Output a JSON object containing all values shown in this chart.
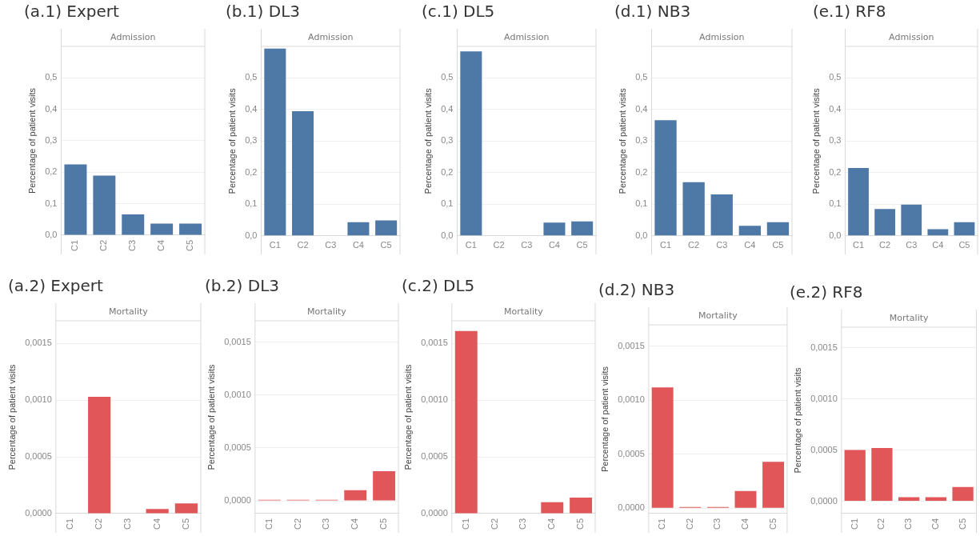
{
  "chart_data": [
    {
      "type": "bar",
      "title": "(a.1) Expert",
      "subtitle": "Admission",
      "ylabel": "Percentage of patient visits",
      "categories": [
        "C1",
        "C2",
        "C3",
        "C4",
        "C5"
      ],
      "color": "#4e79a7",
      "grid": "y",
      "values": [
        0.225,
        0.189,
        0.066,
        0.037,
        0.037
      ],
      "ylim": [
        0,
        0.6
      ],
      "yticks": [
        {
          "value": 0,
          "label": "0,0"
        },
        {
          "value": 0.1,
          "label": "0,1"
        },
        {
          "value": 0.2,
          "label": "0,2"
        },
        {
          "value": 0.3,
          "label": "0,3"
        },
        {
          "value": 0.4,
          "label": "0,4"
        },
        {
          "value": 0.5,
          "label": "0,5"
        }
      ]
    },
    {
      "type": "bar",
      "title": "(b.1) DL3",
      "subtitle": "Admission",
      "ylabel": "Percentage of patient visits",
      "categories": [
        "C1",
        "C2",
        "C3",
        "C4",
        "C5"
      ],
      "color": "#4e79a7",
      "grid": "y",
      "values": [
        0.593,
        0.395,
        0,
        0.043,
        0.049
      ],
      "ylim": [
        0,
        0.6
      ],
      "yticks": [
        {
          "value": 0,
          "label": "0,0"
        },
        {
          "value": 0.1,
          "label": "0,1"
        },
        {
          "value": 0.2,
          "label": "0,2"
        },
        {
          "value": 0.3,
          "label": "0,3"
        },
        {
          "value": 0.4,
          "label": "0,4"
        },
        {
          "value": 0.5,
          "label": "0,5"
        }
      ]
    },
    {
      "type": "bar",
      "title": "(c.1) DL5",
      "subtitle": "Admission",
      "ylabel": "Percentage of patient visits",
      "categories": [
        "C1",
        "C2",
        "C3",
        "C4",
        "C5"
      ],
      "color": "#4e79a7",
      "grid": "y",
      "values": [
        0.584,
        0,
        0,
        0.042,
        0.046
      ],
      "ylim": [
        0,
        0.6
      ],
      "yticks": [
        {
          "value": 0,
          "label": "0,0"
        },
        {
          "value": 0.1,
          "label": "0,1"
        },
        {
          "value": 0.2,
          "label": "0,2"
        },
        {
          "value": 0.3,
          "label": "0,3"
        },
        {
          "value": 0.4,
          "label": "0,4"
        },
        {
          "value": 0.5,
          "label": "0,5"
        }
      ]
    },
    {
      "type": "bar",
      "title": "(d.1) NB3",
      "subtitle": "Admission",
      "ylabel": "Percentage of patient visits",
      "categories": [
        "C1",
        "C2",
        "C3",
        "C4",
        "C5"
      ],
      "color": "#4e79a7",
      "grid": "y",
      "values": [
        0.366,
        0.17,
        0.131,
        0.032,
        0.043
      ],
      "ylim": [
        0,
        0.6
      ],
      "yticks": [
        {
          "value": 0,
          "label": "0,0"
        },
        {
          "value": 0.1,
          "label": "0,1"
        },
        {
          "value": 0.2,
          "label": "0,2"
        },
        {
          "value": 0.3,
          "label": "0,3"
        },
        {
          "value": 0.4,
          "label": "0,4"
        },
        {
          "value": 0.5,
          "label": "0,5"
        }
      ]
    },
    {
      "type": "bar",
      "title": "(e.1) RF8",
      "subtitle": "Admission",
      "ylabel": "Percentage of patient visits",
      "categories": [
        "C1",
        "C2",
        "C3",
        "C4",
        "C5"
      ],
      "color": "#4e79a7",
      "grid": "y",
      "values": [
        0.215,
        0.085,
        0.099,
        0.021,
        0.043
      ],
      "ylim": [
        0,
        0.6
      ],
      "yticks": [
        {
          "value": 0,
          "label": "0,0"
        },
        {
          "value": 0.1,
          "label": "0,1"
        },
        {
          "value": 0.2,
          "label": "0,2"
        },
        {
          "value": 0.3,
          "label": "0,3"
        },
        {
          "value": 0.4,
          "label": "0,4"
        },
        {
          "value": 0.5,
          "label": "0,5"
        }
      ]
    },
    {
      "type": "bar",
      "title": "(a.2) Expert",
      "subtitle": "Mortality",
      "ylabel": "Percentage of patient visits",
      "categories": [
        "C1",
        "C2",
        "C3",
        "C4",
        "C5"
      ],
      "color": "#e15759",
      "grid": "y",
      "values": [
        0,
        0.00103,
        0,
        4e-05,
        9e-05
      ],
      "ylim": [
        0,
        0.0017
      ],
      "yticks": [
        {
          "value": 0,
          "label": "0,0000"
        },
        {
          "value": 0.0005,
          "label": "0,0005"
        },
        {
          "value": 0.001,
          "label": "0,0010"
        },
        {
          "value": 0.0015,
          "label": "0,0015"
        }
      ]
    },
    {
      "type": "bar",
      "title": "(b.2) DL3",
      "subtitle": "Mortality",
      "ylabel": "Percentage of patient visits",
      "categories": [
        "C1",
        "C2",
        "C3",
        "C4",
        "C5"
      ],
      "color": "#e15759",
      "grid": "y",
      "values": [
        1e-05,
        1e-05,
        1e-05,
        0.0001,
        0.00028
      ],
      "ylim": [
        -0.00012,
        0.0017
      ],
      "yticks": [
        {
          "value": 0,
          "label": "0,0000"
        },
        {
          "value": 0.0005,
          "label": "0,0005"
        },
        {
          "value": 0.001,
          "label": "0,0010"
        },
        {
          "value": 0.0015,
          "label": "0,0015"
        }
      ]
    },
    {
      "type": "bar",
      "title": "(c.2) DL5",
      "subtitle": "Mortality",
      "ylabel": "Percentage of patient visits",
      "categories": [
        "C1",
        "C2",
        "C3",
        "C4",
        "C5"
      ],
      "color": "#e15759",
      "grid": "y",
      "values": [
        0.00161,
        0,
        0,
        0.0001,
        0.00014
      ],
      "ylim": [
        0,
        0.0017
      ],
      "yticks": [
        {
          "value": 0,
          "label": "0,0000"
        },
        {
          "value": 0.0005,
          "label": "0,0005"
        },
        {
          "value": 0.001,
          "label": "0,0010"
        },
        {
          "value": 0.0015,
          "label": "0,0015"
        }
      ]
    },
    {
      "type": "bar",
      "title": "(d.2) NB3",
      "subtitle": "Mortality",
      "ylabel": "Percentage of patient visits",
      "categories": [
        "C1",
        "C2",
        "C3",
        "C4",
        "C5"
      ],
      "color": "#e15759",
      "grid": "y",
      "values": [
        0.00112,
        1e-05,
        1e-05,
        0.00016,
        0.00043
      ],
      "ylim": [
        -5e-05,
        0.0017
      ],
      "yticks": [
        {
          "value": 0,
          "label": "0,0000"
        },
        {
          "value": 0.0005,
          "label": "0,0005"
        },
        {
          "value": 0.001,
          "label": "0,0010"
        },
        {
          "value": 0.0015,
          "label": "0,0015"
        }
      ]
    },
    {
      "type": "bar",
      "title": "(e.2) RF8",
      "subtitle": "Mortality",
      "ylabel": "Percentage of patient visits",
      "categories": [
        "C1",
        "C2",
        "C3",
        "C4",
        "C5"
      ],
      "color": "#e15759",
      "grid": "y",
      "values": [
        0.0005,
        0.00052,
        4e-05,
        4e-05,
        0.00014
      ],
      "ylim": [
        -0.00012,
        0.0017
      ],
      "yticks": [
        {
          "value": 0,
          "label": "0,0000"
        },
        {
          "value": 0.0005,
          "label": "0,0005"
        },
        {
          "value": 0.001,
          "label": "0,0010"
        },
        {
          "value": 0.0015,
          "label": "0,0015"
        }
      ]
    }
  ]
}
